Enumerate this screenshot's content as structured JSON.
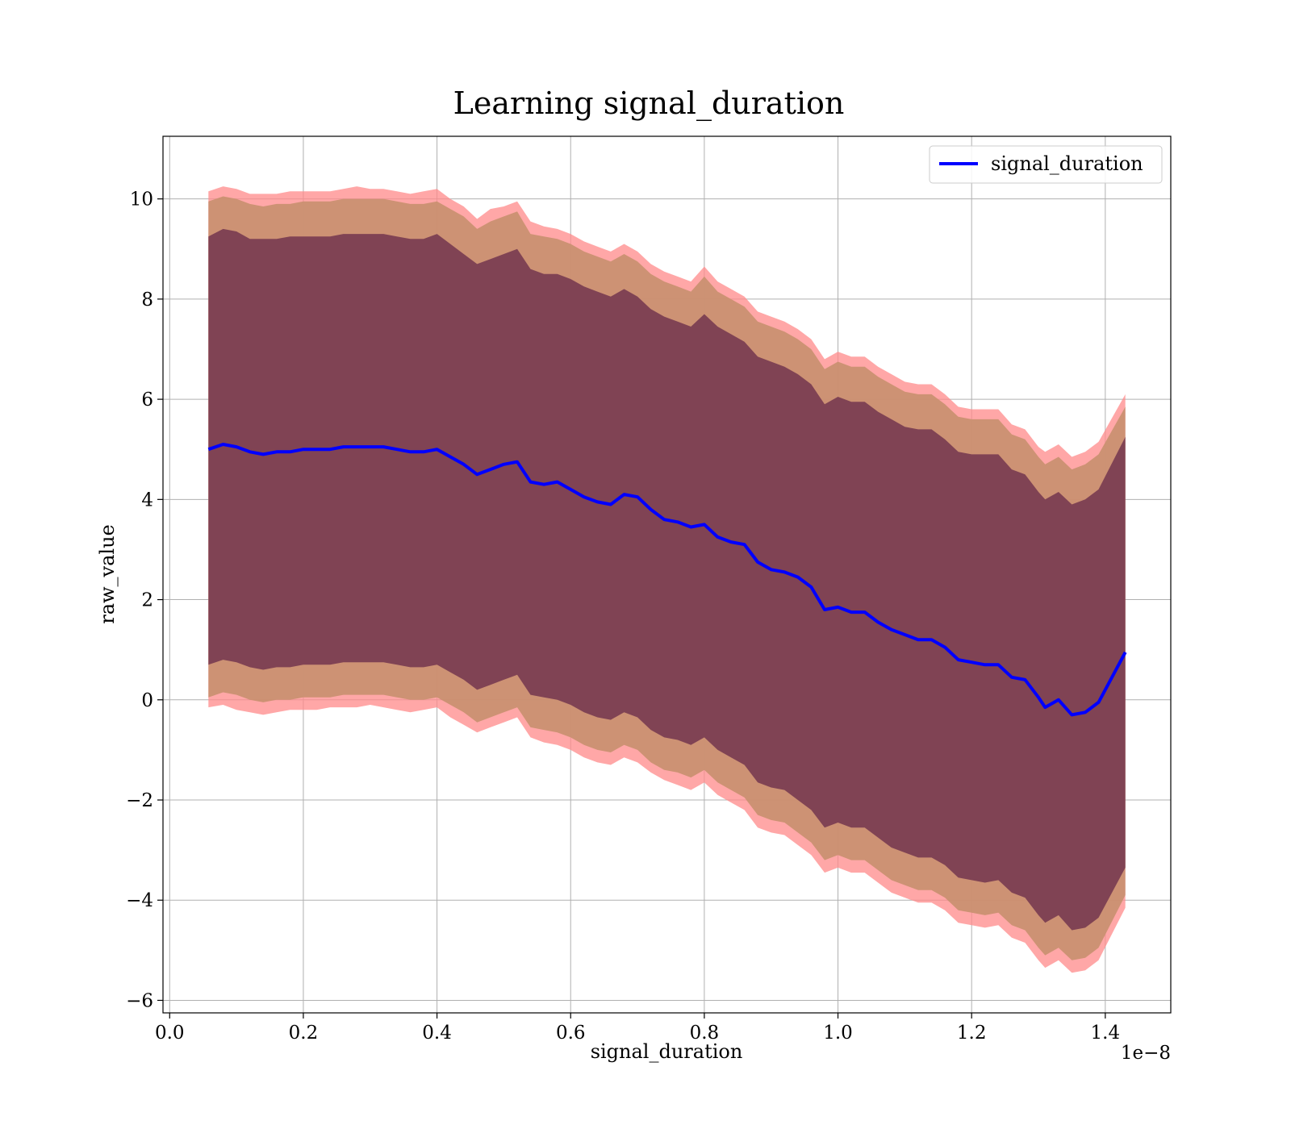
{
  "chart_data": {
    "type": "line",
    "title": "Learning signal_duration",
    "xlabel": "signal_duration",
    "ylabel": "raw_value",
    "x_offset_text": "1e−8",
    "x_tick_labels": [
      "0.0",
      "0.2",
      "0.4",
      "0.6",
      "0.8",
      "1.0",
      "1.2",
      "1.4"
    ],
    "x_ticks": [
      0.0,
      0.2,
      0.4,
      0.6,
      0.8,
      1.0,
      1.2,
      1.4
    ],
    "y_tick_labels": [
      "−6",
      "−4",
      "−2",
      "0",
      "2",
      "4",
      "6",
      "8",
      "10"
    ],
    "y_ticks": [
      -6,
      -4,
      -2,
      0,
      2,
      4,
      6,
      8,
      10
    ],
    "xlim": [
      -0.01,
      1.498
    ],
    "ylim": [
      -6.25,
      11.25
    ],
    "x_scale_note": "x values in units of 1e-8",
    "grid": true,
    "legend": {
      "position": "upper right",
      "entries": [
        "signal_duration"
      ]
    },
    "colors": {
      "line": "#0000ff",
      "band_inner": "#7b3f52",
      "band_middle": "#c8906f",
      "band_outer": "#ff8a8a"
    },
    "series": [
      {
        "name": "signal_duration",
        "x": [
          0.058,
          0.08,
          0.1,
          0.12,
          0.14,
          0.16,
          0.18,
          0.2,
          0.22,
          0.24,
          0.26,
          0.28,
          0.3,
          0.32,
          0.34,
          0.36,
          0.38,
          0.4,
          0.42,
          0.44,
          0.46,
          0.48,
          0.5,
          0.52,
          0.54,
          0.56,
          0.58,
          0.6,
          0.62,
          0.64,
          0.66,
          0.68,
          0.7,
          0.72,
          0.74,
          0.76,
          0.78,
          0.8,
          0.82,
          0.84,
          0.86,
          0.88,
          0.9,
          0.92,
          0.94,
          0.96,
          0.98,
          1.0,
          1.02,
          1.04,
          1.06,
          1.08,
          1.1,
          1.12,
          1.14,
          1.16,
          1.18,
          1.2,
          1.22,
          1.24,
          1.26,
          1.28,
          1.3,
          1.31,
          1.33,
          1.35,
          1.37,
          1.39,
          1.43
        ],
        "values": [
          5.0,
          5.1,
          5.05,
          4.95,
          4.9,
          4.95,
          4.95,
          5.0,
          5.0,
          5.0,
          5.05,
          5.05,
          5.05,
          5.05,
          5.0,
          4.95,
          4.95,
          5.0,
          4.85,
          4.7,
          4.5,
          4.6,
          4.7,
          4.75,
          4.35,
          4.3,
          4.35,
          4.2,
          4.05,
          3.95,
          3.9,
          4.1,
          4.05,
          3.8,
          3.6,
          3.55,
          3.45,
          3.5,
          3.25,
          3.15,
          3.1,
          2.75,
          2.6,
          2.55,
          2.45,
          2.25,
          1.8,
          1.85,
          1.75,
          1.75,
          1.55,
          1.4,
          1.3,
          1.2,
          1.2,
          1.05,
          0.8,
          0.75,
          0.7,
          0.7,
          0.45,
          0.4,
          0.05,
          -0.15,
          0.0,
          -0.3,
          -0.25,
          -0.05,
          0.95
        ]
      }
    ],
    "bands": [
      {
        "color_key": "band_outer",
        "x": [
          0.058,
          0.08,
          0.1,
          0.12,
          0.14,
          0.16,
          0.18,
          0.2,
          0.22,
          0.24,
          0.26,
          0.28,
          0.3,
          0.32,
          0.34,
          0.36,
          0.38,
          0.4,
          0.42,
          0.44,
          0.46,
          0.48,
          0.5,
          0.52,
          0.54,
          0.56,
          0.58,
          0.6,
          0.62,
          0.64,
          0.66,
          0.68,
          0.7,
          0.72,
          0.74,
          0.76,
          0.78,
          0.8,
          0.82,
          0.84,
          0.86,
          0.88,
          0.9,
          0.92,
          0.94,
          0.96,
          0.98,
          1.0,
          1.02,
          1.04,
          1.06,
          1.08,
          1.1,
          1.12,
          1.14,
          1.16,
          1.18,
          1.2,
          1.22,
          1.24,
          1.26,
          1.28,
          1.3,
          1.31,
          1.33,
          1.35,
          1.37,
          1.39,
          1.43
        ],
        "upper": [
          10.15,
          10.25,
          10.2,
          10.1,
          10.1,
          10.1,
          10.15,
          10.15,
          10.15,
          10.15,
          10.2,
          10.25,
          10.2,
          10.2,
          10.15,
          10.1,
          10.15,
          10.2,
          10.0,
          9.85,
          9.6,
          9.8,
          9.85,
          9.95,
          9.55,
          9.45,
          9.4,
          9.3,
          9.15,
          9.05,
          8.95,
          9.1,
          8.95,
          8.7,
          8.55,
          8.45,
          8.35,
          8.65,
          8.35,
          8.2,
          8.05,
          7.75,
          7.65,
          7.55,
          7.4,
          7.2,
          6.8,
          6.95,
          6.85,
          6.85,
          6.65,
          6.5,
          6.35,
          6.3,
          6.3,
          6.1,
          5.85,
          5.8,
          5.8,
          5.8,
          5.5,
          5.4,
          5.05,
          4.95,
          5.1,
          4.85,
          4.95,
          5.15,
          6.1
        ],
        "lower": [
          -0.15,
          -0.1,
          -0.2,
          -0.25,
          -0.3,
          -0.25,
          -0.2,
          -0.2,
          -0.2,
          -0.15,
          -0.15,
          -0.15,
          -0.1,
          -0.15,
          -0.2,
          -0.25,
          -0.2,
          -0.15,
          -0.35,
          -0.5,
          -0.65,
          -0.55,
          -0.45,
          -0.35,
          -0.75,
          -0.85,
          -0.9,
          -1.0,
          -1.15,
          -1.25,
          -1.3,
          -1.15,
          -1.25,
          -1.45,
          -1.6,
          -1.7,
          -1.8,
          -1.65,
          -1.9,
          -2.05,
          -2.2,
          -2.55,
          -2.65,
          -2.7,
          -2.9,
          -3.1,
          -3.45,
          -3.35,
          -3.45,
          -3.45,
          -3.65,
          -3.85,
          -3.95,
          -4.05,
          -4.05,
          -4.2,
          -4.45,
          -4.5,
          -4.55,
          -4.5,
          -4.75,
          -4.85,
          -5.2,
          -5.35,
          -5.2,
          -5.45,
          -5.4,
          -5.2,
          -4.15
        ]
      },
      {
        "color_key": "band_middle",
        "x": [
          0.058,
          0.08,
          0.1,
          0.12,
          0.14,
          0.16,
          0.18,
          0.2,
          0.22,
          0.24,
          0.26,
          0.28,
          0.3,
          0.32,
          0.34,
          0.36,
          0.38,
          0.4,
          0.42,
          0.44,
          0.46,
          0.48,
          0.5,
          0.52,
          0.54,
          0.56,
          0.58,
          0.6,
          0.62,
          0.64,
          0.66,
          0.68,
          0.7,
          0.72,
          0.74,
          0.76,
          0.78,
          0.8,
          0.82,
          0.84,
          0.86,
          0.88,
          0.9,
          0.92,
          0.94,
          0.96,
          0.98,
          1.0,
          1.02,
          1.04,
          1.06,
          1.08,
          1.1,
          1.12,
          1.14,
          1.16,
          1.18,
          1.2,
          1.22,
          1.24,
          1.26,
          1.28,
          1.3,
          1.31,
          1.33,
          1.35,
          1.37,
          1.39,
          1.43
        ],
        "upper": [
          9.95,
          10.05,
          10.0,
          9.9,
          9.85,
          9.9,
          9.9,
          9.95,
          9.95,
          9.95,
          10.0,
          10.0,
          10.0,
          10.0,
          9.95,
          9.9,
          9.9,
          9.95,
          9.8,
          9.65,
          9.4,
          9.55,
          9.65,
          9.75,
          9.3,
          9.25,
          9.2,
          9.1,
          8.95,
          8.85,
          8.75,
          8.9,
          8.75,
          8.5,
          8.35,
          8.25,
          8.15,
          8.45,
          8.15,
          8.0,
          7.85,
          7.55,
          7.45,
          7.35,
          7.2,
          7.0,
          6.6,
          6.75,
          6.65,
          6.65,
          6.45,
          6.3,
          6.15,
          6.1,
          6.1,
          5.9,
          5.65,
          5.6,
          5.6,
          5.6,
          5.3,
          5.2,
          4.85,
          4.7,
          4.85,
          4.6,
          4.7,
          4.9,
          5.85
        ],
        "lower": [
          0.05,
          0.15,
          0.1,
          0.0,
          -0.05,
          0.0,
          0.0,
          0.05,
          0.05,
          0.05,
          0.1,
          0.1,
          0.1,
          0.1,
          0.05,
          0.0,
          0.0,
          0.05,
          -0.1,
          -0.25,
          -0.45,
          -0.35,
          -0.25,
          -0.15,
          -0.55,
          -0.6,
          -0.65,
          -0.75,
          -0.9,
          -1.0,
          -1.05,
          -0.9,
          -1.0,
          -1.25,
          -1.4,
          -1.45,
          -1.55,
          -1.4,
          -1.65,
          -1.8,
          -1.95,
          -2.3,
          -2.4,
          -2.45,
          -2.65,
          -2.85,
          -3.2,
          -3.1,
          -3.2,
          -3.2,
          -3.4,
          -3.6,
          -3.7,
          -3.8,
          -3.8,
          -3.95,
          -4.2,
          -4.25,
          -4.3,
          -4.25,
          -4.5,
          -4.6,
          -4.95,
          -5.1,
          -4.95,
          -5.2,
          -5.15,
          -4.95,
          -3.9
        ]
      },
      {
        "color_key": "band_inner",
        "x": [
          0.058,
          0.08,
          0.1,
          0.12,
          0.14,
          0.16,
          0.18,
          0.2,
          0.22,
          0.24,
          0.26,
          0.28,
          0.3,
          0.32,
          0.34,
          0.36,
          0.38,
          0.4,
          0.42,
          0.44,
          0.46,
          0.48,
          0.5,
          0.52,
          0.54,
          0.56,
          0.58,
          0.6,
          0.62,
          0.64,
          0.66,
          0.68,
          0.7,
          0.72,
          0.74,
          0.76,
          0.78,
          0.8,
          0.82,
          0.84,
          0.86,
          0.88,
          0.9,
          0.92,
          0.94,
          0.96,
          0.98,
          1.0,
          1.02,
          1.04,
          1.06,
          1.08,
          1.1,
          1.12,
          1.14,
          1.16,
          1.18,
          1.2,
          1.22,
          1.24,
          1.26,
          1.28,
          1.3,
          1.31,
          1.33,
          1.35,
          1.37,
          1.39,
          1.43
        ],
        "upper": [
          9.25,
          9.4,
          9.35,
          9.2,
          9.2,
          9.2,
          9.25,
          9.25,
          9.25,
          9.25,
          9.3,
          9.3,
          9.3,
          9.3,
          9.25,
          9.2,
          9.2,
          9.3,
          9.1,
          8.9,
          8.7,
          8.8,
          8.9,
          9.0,
          8.6,
          8.5,
          8.5,
          8.4,
          8.25,
          8.15,
          8.05,
          8.2,
          8.05,
          7.8,
          7.65,
          7.55,
          7.45,
          7.7,
          7.45,
          7.3,
          7.15,
          6.85,
          6.75,
          6.65,
          6.5,
          6.3,
          5.9,
          6.05,
          5.95,
          5.95,
          5.75,
          5.6,
          5.45,
          5.4,
          5.4,
          5.2,
          4.95,
          4.9,
          4.9,
          4.9,
          4.6,
          4.5,
          4.15,
          4.0,
          4.15,
          3.9,
          4.0,
          4.2,
          5.25
        ],
        "lower": [
          0.7,
          0.8,
          0.75,
          0.65,
          0.6,
          0.65,
          0.65,
          0.7,
          0.7,
          0.7,
          0.75,
          0.75,
          0.75,
          0.75,
          0.7,
          0.65,
          0.65,
          0.7,
          0.55,
          0.4,
          0.2,
          0.3,
          0.4,
          0.5,
          0.1,
          0.05,
          0.0,
          -0.1,
          -0.25,
          -0.35,
          -0.4,
          -0.25,
          -0.35,
          -0.6,
          -0.75,
          -0.8,
          -0.9,
          -0.75,
          -1.0,
          -1.15,
          -1.3,
          -1.65,
          -1.75,
          -1.8,
          -2.0,
          -2.2,
          -2.55,
          -2.45,
          -2.55,
          -2.55,
          -2.75,
          -2.95,
          -3.05,
          -3.15,
          -3.15,
          -3.3,
          -3.55,
          -3.6,
          -3.65,
          -3.6,
          -3.85,
          -3.95,
          -4.3,
          -4.45,
          -4.3,
          -4.6,
          -4.55,
          -4.35,
          -3.35
        ]
      }
    ]
  }
}
